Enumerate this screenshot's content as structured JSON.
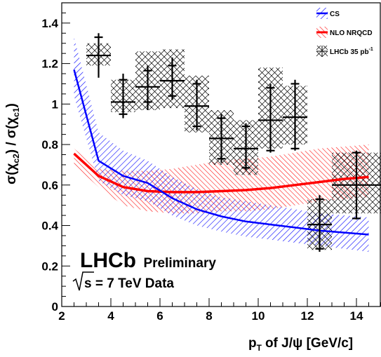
{
  "chart_data": {
    "type": "line",
    "title": "",
    "xlabel": "of J/ψ [GeV/c]",
    "xlabel_var": "p",
    "xlabel_sub": "T",
    "ylabel_parts": [
      "σ(χ",
      "c2",
      ") / σ(χ",
      "c1",
      ")"
    ],
    "xlim": [
      2,
      15
    ],
    "ylim": [
      0,
      1.5
    ],
    "x_ticks": [
      2,
      4,
      6,
      8,
      10,
      12,
      14
    ],
    "x_tick_labels": [
      "2",
      "4",
      "6",
      "8",
      "10",
      "12",
      "14"
    ],
    "y_ticks": [
      0,
      0.2,
      0.4,
      0.6,
      0.8,
      1.0,
      1.2,
      1.4
    ],
    "y_tick_labels": [
      "0",
      "0.2",
      "0.4",
      "0.6",
      "0.8",
      "1",
      "1.2",
      "1.4"
    ],
    "grid": false,
    "legend_position": "top-right",
    "legend": [
      {
        "label": "CS",
        "style": "band-line",
        "color": "#0000ff"
      },
      {
        "label": "NLO NRQCD",
        "style": "band-line",
        "color": "#ff0000"
      },
      {
        "label": "LHCb 35 pb",
        "sup": "-1",
        "style": "crosshatch-errorbar",
        "color": "#000000"
      }
    ],
    "annotations": {
      "experiment": "LHCb",
      "status": "Preliminary",
      "energy_prefix": "s",
      "energy_text": " = 7 TeV Data"
    },
    "series": [
      {
        "name": "CS",
        "color": "#0000ff",
        "x": [
          2.5,
          3.5,
          4.5,
          5.5,
          6.5,
          7.5,
          8.5,
          9.5,
          10.5,
          11.5,
          12.5,
          13.5,
          14.5
        ],
        "y": [
          1.17,
          0.72,
          0.645,
          0.61,
          0.535,
          0.48,
          0.445,
          0.42,
          0.405,
          0.39,
          0.375,
          0.365,
          0.355
        ],
        "band_low": [
          1.04,
          0.62,
          0.55,
          0.52,
          0.45,
          0.4,
          0.37,
          0.345,
          0.33,
          0.315,
          0.3,
          0.285,
          0.27
        ],
        "band_high": [
          1.33,
          0.86,
          0.77,
          0.72,
          0.64,
          0.58,
          0.54,
          0.52,
          0.5,
          0.48,
          0.46,
          0.45,
          0.44
        ]
      },
      {
        "name": "NLO NRQCD",
        "color": "#ff0000",
        "x": [
          2.5,
          3.5,
          4.5,
          5.5,
          6.5,
          7.5,
          8.5,
          9.5,
          10.5,
          11.5,
          12.5,
          13.5,
          14.5
        ],
        "y": [
          0.755,
          0.645,
          0.59,
          0.57,
          0.565,
          0.565,
          0.57,
          0.575,
          0.585,
          0.6,
          0.615,
          0.63,
          0.64
        ],
        "band_low": [
          0.7,
          0.59,
          0.5,
          0.47,
          0.46,
          0.46,
          0.47,
          0.47,
          0.48,
          0.5,
          0.52,
          0.53,
          0.54
        ],
        "band_high": [
          0.78,
          0.68,
          0.67,
          0.67,
          0.68,
          0.7,
          0.72,
          0.73,
          0.74,
          0.76,
          0.78,
          0.79,
          0.8
        ]
      },
      {
        "name": "LHCb 35 pb-1",
        "type": "errorbar",
        "color": "#000000",
        "x": [
          3.5,
          4.5,
          5.5,
          6.5,
          7.5,
          8.5,
          9.5,
          10.5,
          11.5,
          12.5,
          14.0
        ],
        "y": [
          1.24,
          1.01,
          1.085,
          1.115,
          0.99,
          0.83,
          0.78,
          0.92,
          0.935,
          0.405,
          0.6
        ],
        "xerr": [
          0.5,
          0.5,
          0.5,
          0.5,
          0.5,
          0.5,
          0.5,
          0.5,
          0.5,
          0.5,
          1.0
        ],
        "y_low": [
          1.13,
          0.93,
          0.97,
          1.02,
          0.87,
          0.71,
          0.675,
          0.76,
          0.77,
          0.27,
          0.43
        ],
        "y_high": [
          1.35,
          1.15,
          1.19,
          1.23,
          1.12,
          0.95,
          0.905,
          1.1,
          1.12,
          0.55,
          0.77
        ],
        "syst_low": [
          null,
          0.95,
          1.01,
          1.04,
          0.89,
          0.73,
          0.685,
          0.77,
          0.78,
          0.285,
          0.435
        ],
        "syst_high": [
          1.33,
          1.12,
          1.165,
          1.19,
          1.1,
          0.93,
          0.89,
          1.08,
          1.1,
          0.53,
          0.76
        ],
        "band_low": [
          1.19,
          0.96,
          0.97,
          0.98,
          0.86,
          0.7,
          0.65,
          0.78,
          0.8,
          0.28,
          0.46
        ],
        "band_high": [
          1.3,
          1.12,
          1.26,
          1.27,
          1.14,
          0.97,
          0.92,
          1.18,
          1.09,
          0.53,
          0.76
        ]
      }
    ]
  }
}
